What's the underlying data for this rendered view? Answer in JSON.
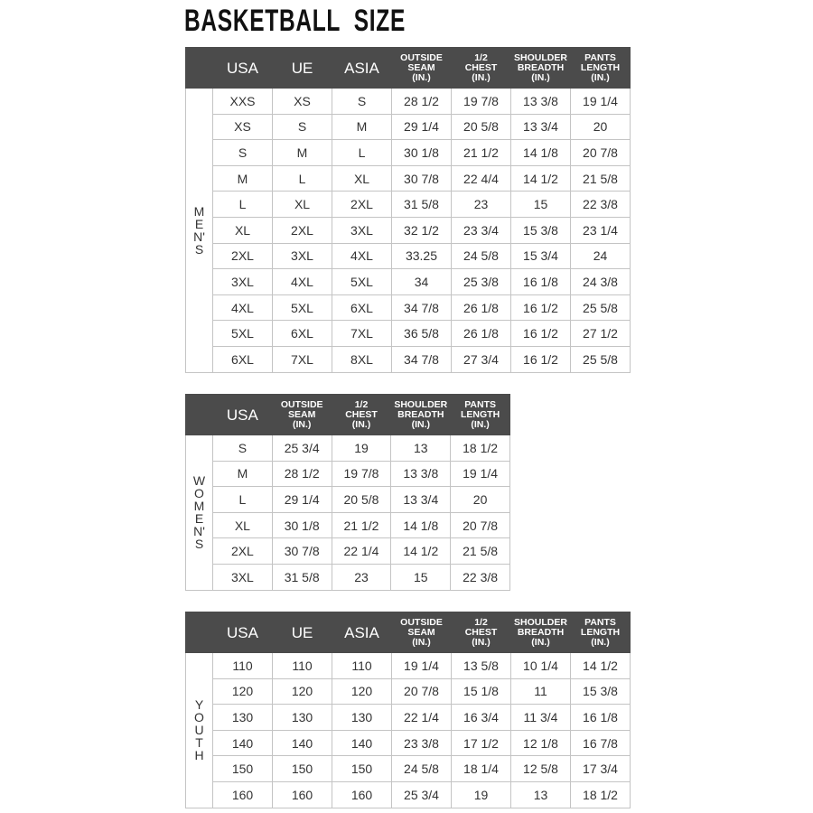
{
  "title": "BASKETBALL  SIZE",
  "colors": {
    "header_bg": "#4b4b4b",
    "header_text": "#ffffff",
    "border": "#c4c4c4"
  },
  "tables": [
    {
      "id": "mens",
      "side_label": "MEN'S",
      "headers": [
        "USA",
        "UE",
        "ASIA",
        "OUTSIDE\nSEAM\n(IN.)",
        "1/2\nCHEST\n(IN.)",
        "SHOULDER\nBREADTH\n(IN.)",
        "PANTS\nLENGTH\n(IN.)"
      ],
      "rows": [
        [
          "XXS",
          "XS",
          "S",
          "28 1/2",
          "19 7/8",
          "13 3/8",
          "19 1/4"
        ],
        [
          "XS",
          "S",
          "M",
          "29 1/4",
          "20 5/8",
          "13 3/4",
          "20"
        ],
        [
          "S",
          "M",
          "L",
          "30 1/8",
          "21 1/2",
          "14 1/8",
          "20 7/8"
        ],
        [
          "M",
          "L",
          "XL",
          "30 7/8",
          "22 4/4",
          "14 1/2",
          "21 5/8"
        ],
        [
          "L",
          "XL",
          "2XL",
          "31 5/8",
          "23",
          "15",
          "22 3/8"
        ],
        [
          "XL",
          "2XL",
          "3XL",
          "32 1/2",
          "23 3/4",
          "15 3/8",
          "23 1/4"
        ],
        [
          "2XL",
          "3XL",
          "4XL",
          "33.25",
          "24 5/8",
          "15 3/4",
          "24"
        ],
        [
          "3XL",
          "4XL",
          "5XL",
          "34",
          "25 3/8",
          "16 1/8",
          "24 3/8"
        ],
        [
          "4XL",
          "5XL",
          "6XL",
          "34 7/8",
          "26 1/8",
          "16 1/2",
          "25 5/8"
        ],
        [
          "5XL",
          "6XL",
          "7XL",
          "36 5/8",
          "26 1/8",
          "16 1/2",
          "27 1/2"
        ],
        [
          "6XL",
          "7XL",
          "8XL",
          "34 7/8",
          "27 3/4",
          "16 1/2",
          "25 5/8"
        ]
      ]
    },
    {
      "id": "womens",
      "side_label": "WOMEN'S",
      "headers": [
        "USA",
        "OUTSIDE\nSEAM\n(IN.)",
        "1/2\nCHEST\n(IN.)",
        "SHOULDER\nBREADTH\n(IN.)",
        "PANTS\nLENGTH\n(IN.)"
      ],
      "rows": [
        [
          "S",
          "25 3/4",
          "19",
          "13",
          "18 1/2"
        ],
        [
          "M",
          "28 1/2",
          "19 7/8",
          "13 3/8",
          "19 1/4"
        ],
        [
          "L",
          "29 1/4",
          "20 5/8",
          "13 3/4",
          "20"
        ],
        [
          "XL",
          "30 1/8",
          "21 1/2",
          "14 1/8",
          "20 7/8"
        ],
        [
          "2XL",
          "30 7/8",
          "22 1/4",
          "14 1/2",
          "21 5/8"
        ],
        [
          "3XL",
          "31 5/8",
          "23",
          "15",
          "22 3/8"
        ]
      ]
    },
    {
      "id": "youth",
      "side_label": "YOUTH",
      "headers": [
        "USA",
        "UE",
        "ASIA",
        "OUTSIDE\nSEAM\n(IN.)",
        "1/2\nCHEST\n(IN.)",
        "SHOULDER\nBREADTH\n(IN.)",
        "PANTS\nLENGTH\n(IN.)"
      ],
      "rows": [
        [
          "110",
          "110",
          "110",
          "19 1/4",
          "13 5/8",
          "10 1/4",
          "14 1/2"
        ],
        [
          "120",
          "120",
          "120",
          "20 7/8",
          "15 1/8",
          "11",
          "15 3/8"
        ],
        [
          "130",
          "130",
          "130",
          "22 1/4",
          "16 3/4",
          "11 3/4",
          "16 1/8"
        ],
        [
          "140",
          "140",
          "140",
          "23 3/8",
          "17 1/2",
          "12 1/8",
          "16 7/8"
        ],
        [
          "150",
          "150",
          "150",
          "24 5/8",
          "18 1/4",
          "12 5/8",
          "17 3/4"
        ],
        [
          "160",
          "160",
          "160",
          "25 3/4",
          "19",
          "13",
          "18 1/2"
        ]
      ]
    }
  ]
}
